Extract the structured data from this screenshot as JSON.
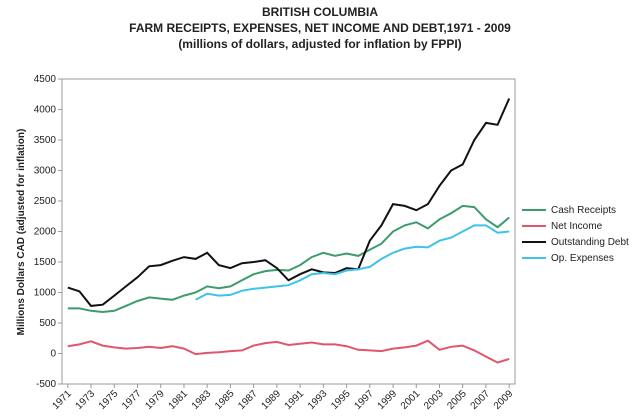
{
  "chart_data": {
    "type": "line",
    "title": [
      "BRITISH COLUMBIA",
      "FARM RECEIPTS, EXPENSES, NET INCOME AND DEBT,1971 - 2009",
      "(millions of dollars, adjusted for inflation by FPPI)"
    ],
    "y_label": "Millions Dollars CAD (adjusted for inflation)",
    "x": [
      1971,
      1972,
      1973,
      1974,
      1975,
      1976,
      1977,
      1978,
      1979,
      1980,
      1981,
      1982,
      1983,
      1984,
      1985,
      1986,
      1987,
      1988,
      1989,
      1990,
      1991,
      1992,
      1993,
      1994,
      1995,
      1996,
      1997,
      1998,
      1999,
      2000,
      2001,
      2002,
      2003,
      2004,
      2005,
      2006,
      2007,
      2008,
      2009
    ],
    "xlim": [
      1970.5,
      2009.5
    ],
    "xticks": [
      1971,
      1973,
      1975,
      1977,
      1979,
      1981,
      1983,
      1985,
      1987,
      1989,
      1991,
      1993,
      1995,
      1997,
      1999,
      2001,
      2003,
      2005,
      2007,
      2009
    ],
    "ylim": [
      -500,
      4500
    ],
    "yticks": [
      -500,
      0,
      500,
      1000,
      1500,
      2000,
      2500,
      3000,
      3500,
      4000,
      4500
    ],
    "grid": false,
    "series": [
      {
        "name": "Cash Receipts",
        "color": "#3e9b6e",
        "values": [
          740,
          740,
          700,
          680,
          700,
          780,
          860,
          920,
          900,
          880,
          950,
          1000,
          1100,
          1070,
          1100,
          1200,
          1300,
          1350,
          1370,
          1360,
          1450,
          1580,
          1650,
          1600,
          1640,
          1600,
          1700,
          1800,
          2000,
          2100,
          2150,
          2050,
          2200,
          2300,
          2420,
          2400,
          2200,
          2070,
          2230
        ]
      },
      {
        "name": "Net Income",
        "color": "#e0566a",
        "values": [
          120,
          150,
          200,
          130,
          100,
          80,
          90,
          110,
          90,
          120,
          80,
          -10,
          10,
          20,
          40,
          50,
          130,
          170,
          190,
          140,
          160,
          180,
          150,
          150,
          120,
          60,
          50,
          40,
          80,
          100,
          130,
          210,
          60,
          110,
          130,
          50,
          -50,
          -150,
          -90
        ]
      },
      {
        "name": "Outstanding Debt",
        "color": "#111111",
        "values": [
          1080,
          1020,
          780,
          800,
          950,
          1100,
          1250,
          1430,
          1450,
          1520,
          1580,
          1550,
          1650,
          1450,
          1400,
          1480,
          1500,
          1530,
          1400,
          1200,
          1300,
          1380,
          1330,
          1320,
          1400,
          1380,
          1850,
          2100,
          2450,
          2420,
          2350,
          2450,
          2750,
          3000,
          3100,
          3500,
          3780,
          3750,
          4180
        ]
      },
      {
        "name": "Op. Expenses",
        "color": "#3ec3e8",
        "values": [
          null,
          null,
          null,
          null,
          null,
          null,
          null,
          null,
          null,
          null,
          null,
          880,
          980,
          950,
          960,
          1030,
          1060,
          1080,
          1100,
          1120,
          1200,
          1300,
          1320,
          1300,
          1360,
          1380,
          1420,
          1550,
          1650,
          1720,
          1750,
          1740,
          1850,
          1900,
          2000,
          2100,
          2100,
          1980,
          2000
        ]
      }
    ]
  }
}
